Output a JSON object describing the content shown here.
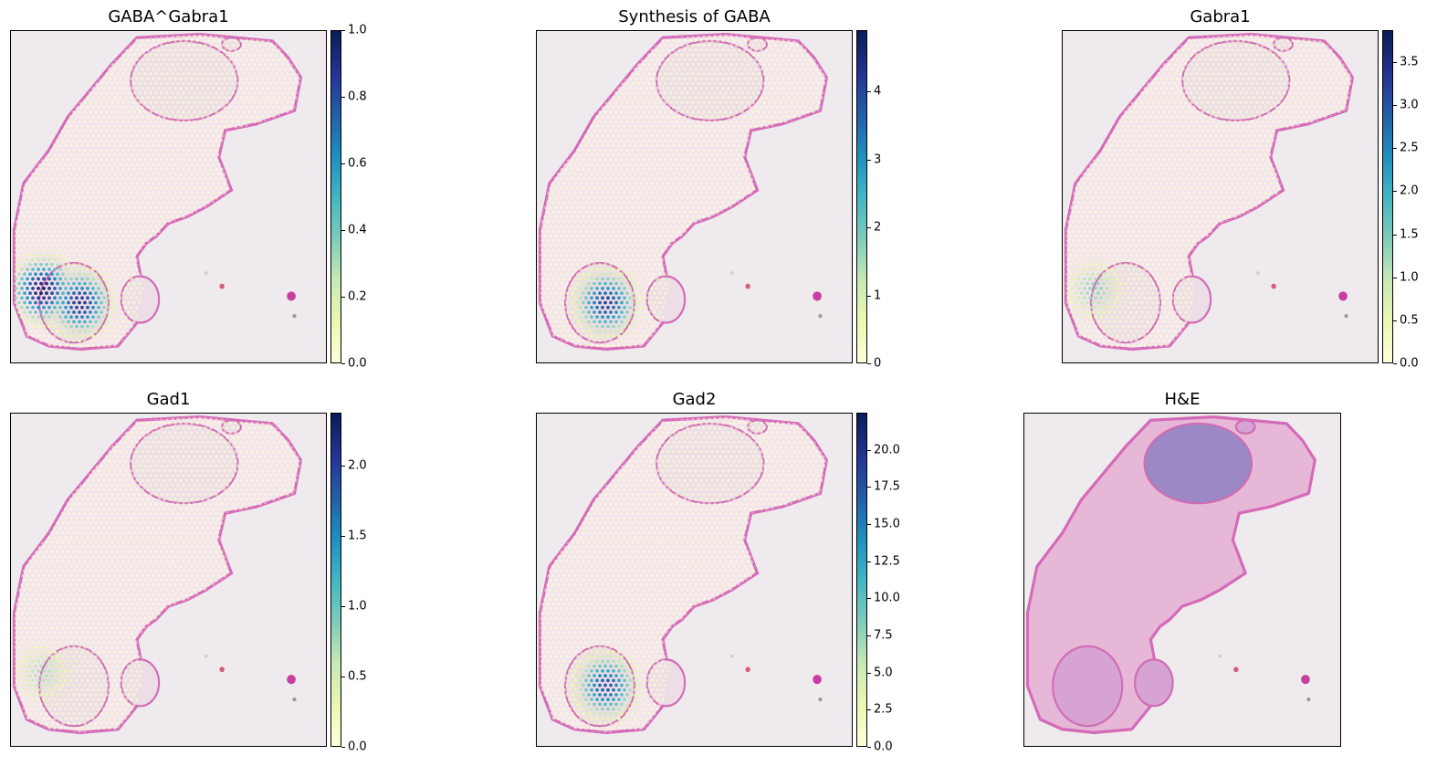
{
  "chart_data": [
    {
      "type": "heatmap",
      "title": "GABA^Gabra1",
      "colormap": "YlGnBu",
      "colorbar": {
        "min": 0.0,
        "max": 1.0,
        "ticks": [
          "0.0",
          "0.2",
          "0.4",
          "0.6",
          "0.8",
          "1.0"
        ],
        "tick_values": [
          0.0,
          0.2,
          0.4,
          0.6,
          0.8,
          1.0
        ]
      },
      "hotspots": [
        {
          "region": "lower-left",
          "level": 1.0
        },
        {
          "region": "lower-center",
          "level": 0.9
        }
      ]
    },
    {
      "type": "heatmap",
      "title": "Synthesis of GABA",
      "colormap": "YlGnBu",
      "colorbar": {
        "min": 0,
        "max": 4.9,
        "ticks": [
          "0",
          "1",
          "2",
          "3",
          "4"
        ],
        "tick_values": [
          0,
          1,
          2,
          3,
          4
        ]
      },
      "hotspots": [
        {
          "region": "lower-center",
          "level": 0.85
        }
      ]
    },
    {
      "type": "heatmap",
      "title": "Gabra1",
      "colormap": "YlGnBu",
      "colorbar": {
        "min": 0.0,
        "max": 3.87,
        "ticks": [
          "0.0",
          "0.5",
          "1.0",
          "1.5",
          "2.0",
          "2.5",
          "3.0",
          "3.5"
        ],
        "tick_values": [
          0.0,
          0.5,
          1.0,
          1.5,
          2.0,
          2.5,
          3.0,
          3.5
        ]
      },
      "hotspots": [
        {
          "region": "lower-left",
          "level": 0.35
        }
      ]
    },
    {
      "type": "heatmap",
      "title": "Gad1",
      "colormap": "YlGnBu",
      "colorbar": {
        "min": 0.0,
        "max": 2.38,
        "ticks": [
          "0.0",
          "0.5",
          "1.0",
          "1.5",
          "2.0"
        ],
        "tick_values": [
          0.0,
          0.5,
          1.0,
          1.5,
          2.0
        ]
      },
      "hotspots": [
        {
          "region": "lower-left",
          "level": 0.3
        }
      ]
    },
    {
      "type": "heatmap",
      "title": "Gad2",
      "colormap": "YlGnBu",
      "colorbar": {
        "min": 0.0,
        "max": 22.5,
        "ticks": [
          "0.0",
          "2.5",
          "5.0",
          "7.5",
          "10.0",
          "12.5",
          "15.0",
          "17.5",
          "20.0"
        ],
        "tick_values": [
          0.0,
          2.5,
          5.0,
          7.5,
          10.0,
          12.5,
          15.0,
          17.5,
          20.0
        ]
      },
      "hotspots": [
        {
          "region": "lower-center",
          "level": 0.8
        }
      ]
    },
    {
      "type": "image",
      "title": "H&E"
    }
  ]
}
